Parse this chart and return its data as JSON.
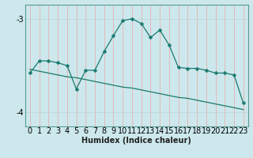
{
  "x": [
    0,
    1,
    2,
    3,
    4,
    5,
    6,
    7,
    8,
    9,
    10,
    11,
    12,
    13,
    14,
    15,
    16,
    17,
    18,
    19,
    20,
    21,
    22,
    23
  ],
  "y_data": [
    -3.58,
    -3.45,
    -3.45,
    -3.47,
    -3.5,
    -3.75,
    -3.55,
    -3.55,
    -3.35,
    -3.18,
    -3.02,
    -3.0,
    -3.05,
    -3.2,
    -3.12,
    -3.28,
    -3.52,
    -3.53,
    -3.53,
    -3.55,
    -3.58,
    -3.58,
    -3.6,
    -3.9
  ],
  "y_trend": [
    -3.54,
    -3.56,
    -3.58,
    -3.6,
    -3.62,
    -3.63,
    -3.65,
    -3.67,
    -3.69,
    -3.71,
    -3.73,
    -3.74,
    -3.76,
    -3.78,
    -3.8,
    -3.82,
    -3.84,
    -3.85,
    -3.87,
    -3.89,
    -3.91,
    -3.93,
    -3.95,
    -3.97
  ],
  "bg_color": "#cce8ec",
  "grid_color_v": "#e8b0b0",
  "grid_color_h": "#b8d8dc",
  "line_color": "#1a7a6e",
  "xlabel": "Humidex (Indice chaleur)",
  "xlim": [
    -0.5,
    23.5
  ],
  "ylim": [
    -4.15,
    -2.85
  ],
  "yticks": [
    -4,
    -3
  ],
  "xticks": [
    0,
    1,
    2,
    3,
    4,
    5,
    6,
    7,
    8,
    9,
    10,
    11,
    12,
    13,
    14,
    15,
    16,
    17,
    18,
    19,
    20,
    21,
    22,
    23
  ],
  "tick_fontsize": 7,
  "xlabel_fontsize": 7,
  "marker_size": 2.5
}
